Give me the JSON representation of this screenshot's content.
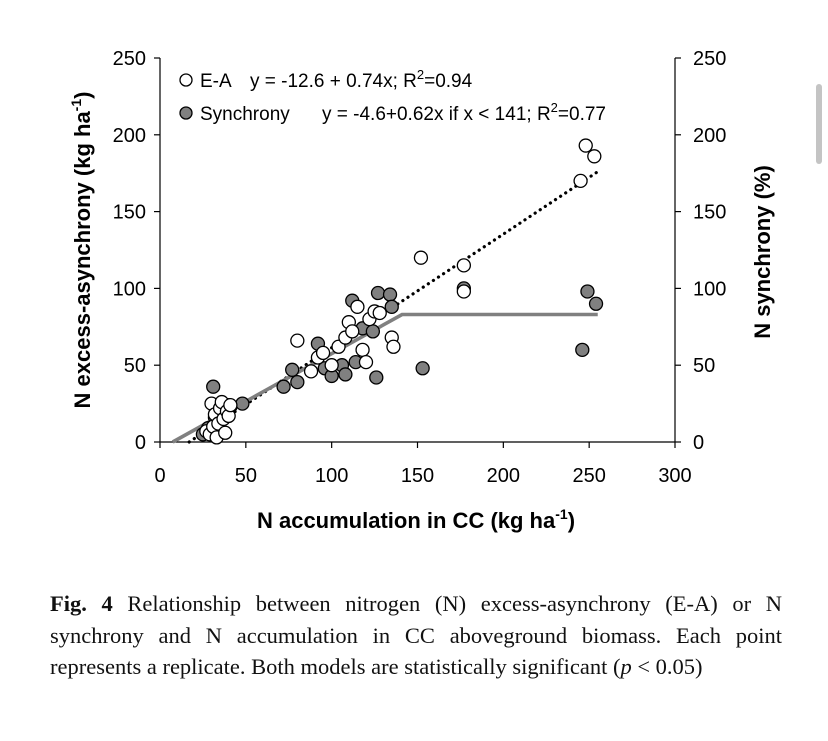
{
  "chart_data": {
    "type": "scatter",
    "xlabel_prefix": "N accumulation in CC (kg ha",
    "xlabel_sup": "-1",
    "xlabel_suffix": ")",
    "ylabel_prefix": "N excess-asynchrony (kg ha",
    "ylabel_sup": "-1",
    "ylabel_suffix": ")",
    "y2label": "N synchrony (%)",
    "xlim": [
      0,
      300
    ],
    "ylim": [
      0,
      250
    ],
    "y2lim": [
      0,
      250
    ],
    "x_ticks": [
      "0",
      "50",
      "100",
      "150",
      "200",
      "250",
      "300"
    ],
    "y_ticks": [
      "0",
      "50",
      "100",
      "150",
      "200",
      "250"
    ],
    "y2_ticks": [
      "0",
      "50",
      "100",
      "150",
      "200",
      "250"
    ],
    "legend": [
      {
        "name": "E-A",
        "marker": "open-circle",
        "equation_prefix": "y = -12.6 + 0.74x; R",
        "equation_sup": "2",
        "equation_suffix": "=0.94"
      },
      {
        "name": "Synchrony",
        "marker": "filled-circle",
        "equation_prefix": "y = -4.6+0.62x if x < 141; R",
        "equation_sup": "2",
        "equation_suffix": "=0.77"
      }
    ],
    "series": [
      {
        "name": "E-A",
        "marker_fill": "#ffffff",
        "points": [
          [
            27,
            7
          ],
          [
            29,
            5
          ],
          [
            30,
            25
          ],
          [
            31,
            10
          ],
          [
            32,
            18
          ],
          [
            33,
            3
          ],
          [
            34,
            12
          ],
          [
            35,
            22
          ],
          [
            36,
            26
          ],
          [
            37,
            15
          ],
          [
            38,
            6
          ],
          [
            39,
            20
          ],
          [
            40,
            17
          ],
          [
            41,
            24
          ],
          [
            80,
            66
          ],
          [
            88,
            46
          ],
          [
            92,
            55
          ],
          [
            95,
            58
          ],
          [
            100,
            50
          ],
          [
            104,
            62
          ],
          [
            108,
            68
          ],
          [
            110,
            78
          ],
          [
            112,
            72
          ],
          [
            115,
            88
          ],
          [
            118,
            60
          ],
          [
            120,
            52
          ],
          [
            122,
            80
          ],
          [
            125,
            85
          ],
          [
            128,
            84
          ],
          [
            135,
            68
          ],
          [
            136,
            62
          ],
          [
            152,
            120
          ],
          [
            177,
            115
          ],
          [
            177,
            98
          ],
          [
            245,
            170
          ],
          [
            248,
            193
          ],
          [
            253,
            186
          ]
        ]
      },
      {
        "name": "Synchrony",
        "marker_fill": "#808080",
        "points": [
          [
            25,
            5
          ],
          [
            28,
            9
          ],
          [
            31,
            36
          ],
          [
            32,
            16
          ],
          [
            34,
            12
          ],
          [
            36,
            20
          ],
          [
            38,
            18
          ],
          [
            40,
            24
          ],
          [
            41,
            23
          ],
          [
            48,
            25
          ],
          [
            72,
            36
          ],
          [
            77,
            47
          ],
          [
            80,
            39
          ],
          [
            92,
            64
          ],
          [
            96,
            48
          ],
          [
            100,
            43
          ],
          [
            106,
            50
          ],
          [
            108,
            44
          ],
          [
            112,
            92
          ],
          [
            114,
            52
          ],
          [
            118,
            74
          ],
          [
            124,
            72
          ],
          [
            126,
            42
          ],
          [
            127,
            97
          ],
          [
            134,
            96
          ],
          [
            135,
            88
          ],
          [
            153,
            48
          ],
          [
            177,
            100
          ],
          [
            246,
            60
          ],
          [
            249,
            98
          ],
          [
            254,
            90
          ]
        ]
      }
    ],
    "fits": [
      {
        "name": "E-A fit",
        "style": "dotted",
        "color": "#000000",
        "points": [
          [
            17,
            0
          ],
          [
            255,
            176
          ]
        ]
      },
      {
        "name": "Synchrony fit",
        "style": "solid",
        "color": "#808080",
        "points": [
          [
            7.4,
            0
          ],
          [
            141,
            83
          ],
          [
            255,
            83
          ]
        ]
      }
    ]
  },
  "caption": {
    "label": "Fig. 4",
    "text_main": " Relationship between nitrogen (N) excess-asynchrony (E-A) or N synchrony and N accumulation in CC aboveground biomass. Each point represents a replicate. Both models are statistically significant (",
    "p_symbol": "p",
    "text_end": " < 0.05)"
  }
}
